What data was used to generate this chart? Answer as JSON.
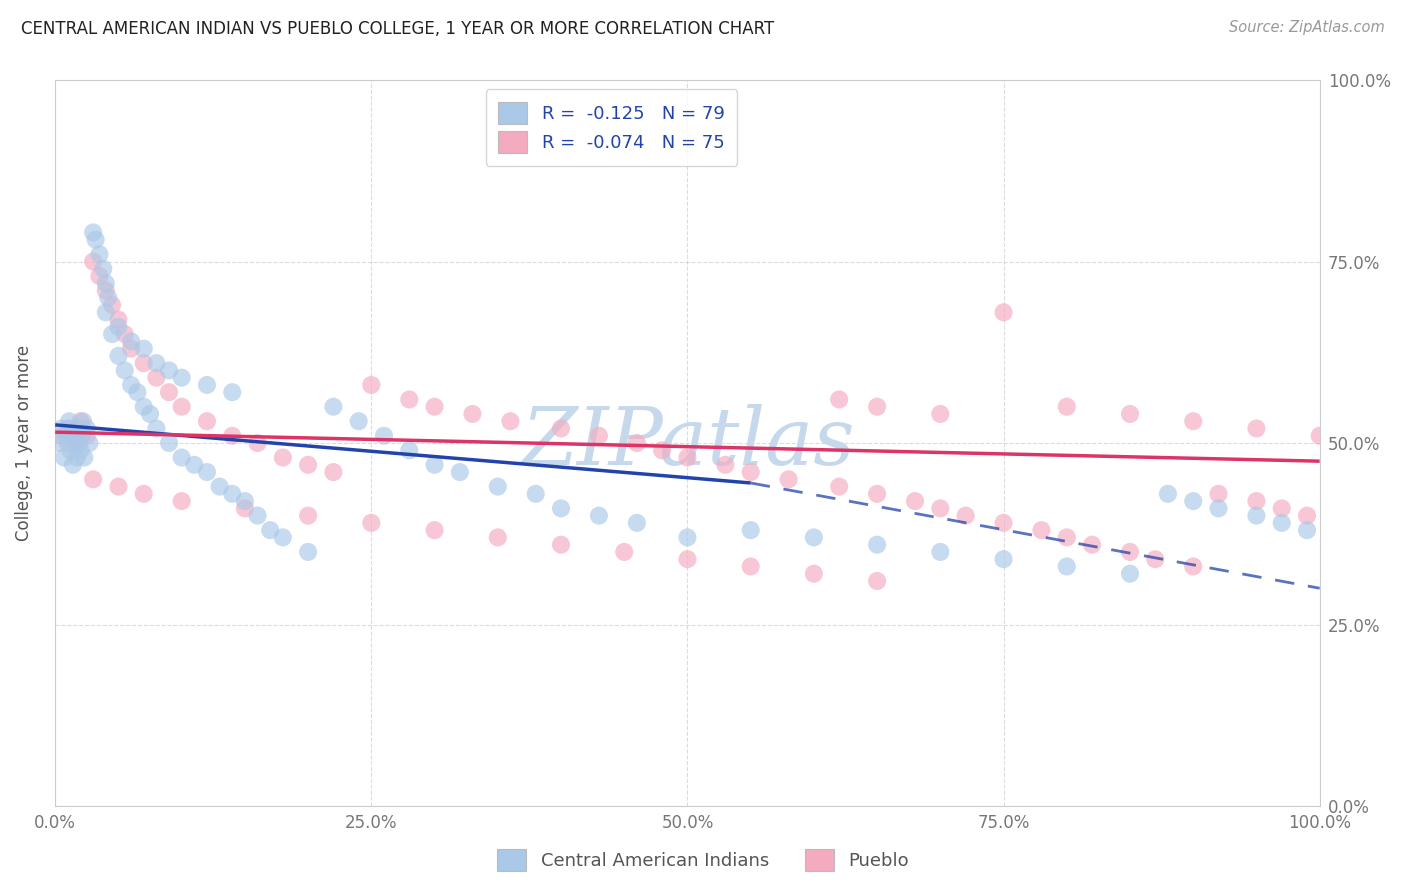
{
  "title": "CENTRAL AMERICAN INDIAN VS PUEBLO COLLEGE, 1 YEAR OR MORE CORRELATION CHART",
  "source": "Source: ZipAtlas.com",
  "ylabel": "College, 1 year or more",
  "legend_label1": "Central American Indians",
  "legend_label2": "Pueblo",
  "r1": -0.125,
  "n1": 79,
  "r2": -0.074,
  "n2": 75,
  "color1": "#aac8e8",
  "color2": "#f4aabf",
  "line_color1": "#2244aa",
  "line_color2": "#dd3366",
  "watermark_color": "#c5d8ec",
  "background_color": "#ffffff",
  "grid_color": "#cccccc",
  "tick_color": "#777777",
  "axis_label_color": "#555555",
  "title_color": "#222222",
  "source_color": "#999999",
  "legend_text_color": "#2244aa",
  "xlim": [
    0,
    100
  ],
  "ylim": [
    0,
    100
  ],
  "xtick_vals": [
    0,
    25,
    50,
    75,
    100
  ],
  "ytick_vals": [
    0,
    25,
    50,
    75,
    100
  ],
  "blue_solid_x0": 0,
  "blue_solid_y0": 52.5,
  "blue_solid_x1": 55,
  "blue_solid_y1": 44.5,
  "blue_dash_x0": 55,
  "blue_dash_y0": 44.5,
  "blue_dash_x1": 100,
  "blue_dash_y1": 30.0,
  "pink_solid_x0": 0,
  "pink_solid_y0": 51.5,
  "pink_solid_x1": 100,
  "pink_solid_y1": 47.5,
  "blue_pts_x": [
    0.3,
    0.5,
    0.7,
    0.9,
    1.0,
    1.1,
    1.2,
    1.3,
    1.4,
    1.5,
    1.6,
    1.7,
    1.8,
    1.9,
    2.0,
    2.1,
    2.2,
    2.3,
    2.5,
    2.7,
    3.0,
    3.2,
    3.5,
    3.8,
    4.0,
    4.2,
    4.5,
    5.0,
    5.5,
    6.0,
    6.5,
    7.0,
    7.5,
    8.0,
    9.0,
    10.0,
    11.0,
    12.0,
    13.0,
    14.0,
    15.0,
    16.0,
    17.0,
    18.0,
    20.0,
    22.0,
    24.0,
    26.0,
    28.0,
    30.0,
    32.0,
    35.0,
    38.0,
    40.0,
    43.0,
    46.0,
    50.0,
    55.0,
    60.0,
    65.0,
    70.0,
    75.0,
    80.0,
    85.0,
    88.0,
    90.0,
    92.0,
    95.0,
    97.0,
    99.0,
    10.0,
    12.0,
    14.0,
    4.0,
    5.0,
    6.0,
    7.0,
    8.0,
    9.0
  ],
  "blue_pts_y": [
    50.0,
    52.0,
    48.0,
    51.0,
    50.0,
    53.0,
    49.0,
    52.0,
    47.0,
    51.0,
    50.0,
    48.0,
    52.0,
    50.0,
    49.0,
    51.0,
    53.0,
    48.0,
    52.0,
    50.0,
    79.0,
    78.0,
    76.0,
    74.0,
    72.0,
    70.0,
    65.0,
    62.0,
    60.0,
    58.0,
    57.0,
    55.0,
    54.0,
    52.0,
    50.0,
    48.0,
    47.0,
    46.0,
    44.0,
    43.0,
    42.0,
    40.0,
    38.0,
    37.0,
    35.0,
    55.0,
    53.0,
    51.0,
    49.0,
    47.0,
    46.0,
    44.0,
    43.0,
    41.0,
    40.0,
    39.0,
    37.0,
    38.0,
    37.0,
    36.0,
    35.0,
    34.0,
    33.0,
    32.0,
    43.0,
    42.0,
    41.0,
    40.0,
    39.0,
    38.0,
    59.0,
    58.0,
    57.0,
    68.0,
    66.0,
    64.0,
    63.0,
    61.0,
    60.0
  ],
  "pink_pts_x": [
    0.5,
    1.0,
    1.5,
    2.0,
    2.5,
    3.0,
    3.5,
    4.0,
    4.5,
    5.0,
    5.5,
    6.0,
    7.0,
    8.0,
    9.0,
    10.0,
    12.0,
    14.0,
    16.0,
    18.0,
    20.0,
    22.0,
    25.0,
    28.0,
    30.0,
    33.0,
    36.0,
    40.0,
    43.0,
    46.0,
    48.0,
    50.0,
    53.0,
    55.0,
    58.0,
    62.0,
    65.0,
    68.0,
    70.0,
    72.0,
    75.0,
    78.0,
    80.0,
    82.0,
    85.0,
    87.0,
    90.0,
    92.0,
    95.0,
    97.0,
    99.0,
    62.0,
    65.0,
    70.0,
    75.0,
    80.0,
    85.0,
    90.0,
    95.0,
    100.0,
    3.0,
    5.0,
    7.0,
    10.0,
    15.0,
    20.0,
    25.0,
    30.0,
    35.0,
    40.0,
    45.0,
    50.0,
    55.0,
    60.0,
    65.0
  ],
  "pink_pts_y": [
    51.0,
    52.0,
    50.0,
    53.0,
    51.0,
    75.0,
    73.0,
    71.0,
    69.0,
    67.0,
    65.0,
    63.0,
    61.0,
    59.0,
    57.0,
    55.0,
    53.0,
    51.0,
    50.0,
    48.0,
    47.0,
    46.0,
    58.0,
    56.0,
    55.0,
    54.0,
    53.0,
    52.0,
    51.0,
    50.0,
    49.0,
    48.0,
    47.0,
    46.0,
    45.0,
    44.0,
    43.0,
    42.0,
    41.0,
    40.0,
    39.0,
    38.0,
    37.0,
    36.0,
    35.0,
    34.0,
    33.0,
    43.0,
    42.0,
    41.0,
    40.0,
    56.0,
    55.0,
    54.0,
    68.0,
    55.0,
    54.0,
    53.0,
    52.0,
    51.0,
    45.0,
    44.0,
    43.0,
    42.0,
    41.0,
    40.0,
    39.0,
    38.0,
    37.0,
    36.0,
    35.0,
    34.0,
    33.0,
    32.0,
    31.0
  ]
}
